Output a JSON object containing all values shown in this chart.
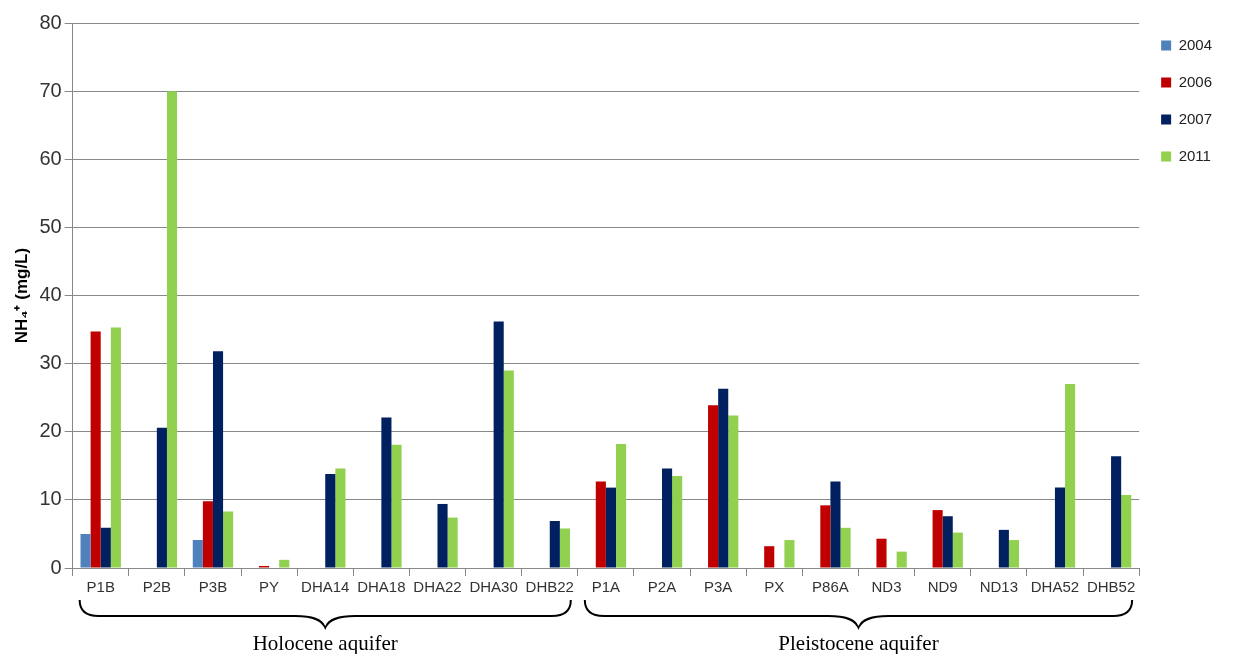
{
  "chart_data": {
    "type": "bar",
    "ylabel": "NH₄⁺ (mg/L)",
    "categories": [
      "P1B",
      "P2B",
      "P3B",
      "PY",
      "DHA14",
      "DHA18",
      "DHA22",
      "DHA30",
      "DHB22",
      "P1A",
      "P2A",
      "P3A",
      "PX",
      "P86A",
      "ND3",
      "ND9",
      "ND13",
      "DHA52",
      "DHB52"
    ],
    "series": [
      {
        "name": "2004",
        "color": "#4f81bd",
        "values": [
          5.0,
          null,
          4.1,
          null,
          null,
          null,
          null,
          null,
          null,
          null,
          null,
          null,
          null,
          null,
          null,
          null,
          null,
          null,
          null
        ]
      },
      {
        "name": "2006",
        "color": "#c00000",
        "values": [
          34.7,
          null,
          9.8,
          0.3,
          null,
          null,
          null,
          null,
          null,
          12.7,
          null,
          23.9,
          3.2,
          9.2,
          4.3,
          8.5,
          null,
          null,
          null
        ]
      },
      {
        "name": "2007",
        "color": "#002060",
        "values": [
          5.9,
          20.6,
          31.8,
          null,
          13.8,
          22.1,
          9.4,
          36.2,
          6.9,
          11.8,
          14.6,
          26.3,
          null,
          12.7,
          null,
          7.6,
          5.6,
          11.8,
          16.4
        ]
      },
      {
        "name": "2011",
        "color": "#92d050",
        "values": [
          35.3,
          70.0,
          8.3,
          1.2,
          14.6,
          18.1,
          7.4,
          29.0,
          5.8,
          18.2,
          13.5,
          22.4,
          4.1,
          5.9,
          2.4,
          5.2,
          4.1,
          27.0,
          10.7
        ]
      }
    ],
    "ylim": [
      0,
      80
    ],
    "yticks": [
      0,
      10,
      20,
      30,
      40,
      50,
      60,
      70,
      80
    ],
    "grid": "y",
    "legend": "top right",
    "annotations": [
      "Holocene aquifer",
      "Pleistocene aquifer"
    ]
  }
}
